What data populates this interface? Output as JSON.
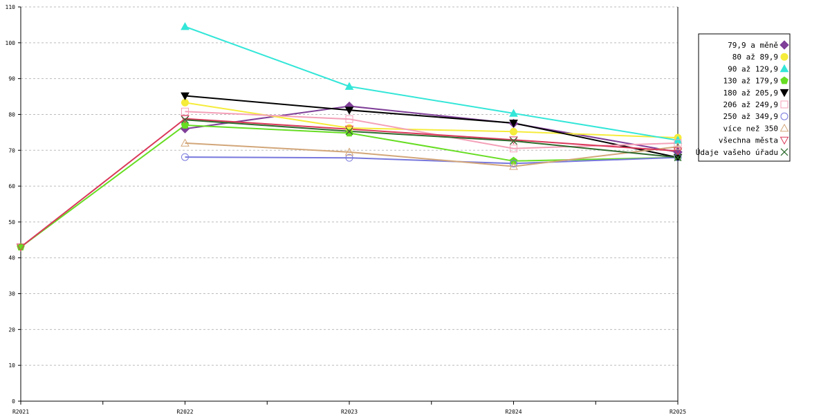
{
  "chart_data": {
    "type": "line",
    "categories": [
      "R2021",
      "R2022",
      "R2023",
      "R2024",
      "R2025"
    ],
    "ylim": [
      0,
      110
    ],
    "yticks": [
      0,
      10,
      20,
      30,
      40,
      50,
      60,
      70,
      80,
      90,
      100,
      110
    ],
    "ytick_labels": [
      "0",
      "10",
      "20",
      "30",
      "40",
      "50",
      "60",
      "70",
      "80",
      "90",
      "100",
      "110"
    ],
    "grid": true,
    "legend_position": "right",
    "series": [
      {
        "name": "79,9 a měně",
        "color": "#7f3f98",
        "marker": "diamond-filled",
        "values": [
          null,
          76.0,
          82.3,
          77.5,
          69.5
        ]
      },
      {
        "name": "80 až 89,9",
        "color": "#f5ec3b",
        "marker": "circle-filled",
        "values": [
          null,
          83.3,
          76.2,
          75.2,
          73.5
        ]
      },
      {
        "name": "90 až 129,9",
        "color": "#33e6d8",
        "marker": "triangle-up-filled",
        "values": [
          null,
          104.5,
          87.8,
          80.3,
          72.8
        ]
      },
      {
        "name": "130 až 179,9",
        "color": "#66dd22",
        "marker": "pentagon-filled",
        "values": [
          43.0,
          77.0,
          74.8,
          67.0,
          68.0
        ]
      },
      {
        "name": "180 až 205,9",
        "color": "#000000",
        "marker": "triangle-down-filled",
        "values": [
          null,
          85.2,
          81.2,
          77.6,
          68.0
        ]
      },
      {
        "name": "206 až 249,9",
        "color": "#f4a0b8",
        "marker": "square-open",
        "values": [
          null,
          80.8,
          78.7,
          70.5,
          72.0
        ]
      },
      {
        "name": "250 až 349,9",
        "color": "#7777dd",
        "marker": "circle-open",
        "values": [
          null,
          68.1,
          67.9,
          66.3,
          68.0
        ]
      },
      {
        "name": "více než 350",
        "color": "#d2a679",
        "marker": "triangle-up-open",
        "values": [
          null,
          72.0,
          69.5,
          65.5,
          71.0
        ]
      },
      {
        "name": "všechna města",
        "color": "#d9385a",
        "marker": "triangle-down-open",
        "values": [
          43.0,
          78.8,
          75.9,
          72.9,
          69.8
        ]
      },
      {
        "name": "Údaje vašeho úřadu",
        "color": "#2e6b2e",
        "marker": "cross",
        "values": [
          null,
          78.5,
          75.3,
          72.6,
          68.0
        ]
      }
    ]
  }
}
